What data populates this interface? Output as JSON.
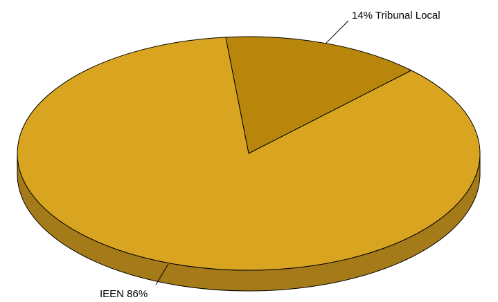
{
  "chart_data": {
    "type": "pie",
    "three_d": true,
    "categories": [
      "Tribunal Local",
      "IEEN"
    ],
    "values": [
      14,
      86
    ],
    "unit": "%",
    "labels": [
      {
        "category": "Tribunal Local",
        "text": "14% Tribunal Local"
      },
      {
        "category": "IEEN",
        "text": "IEEN 86%"
      }
    ],
    "colors": {
      "IEEN": "#D9A521",
      "Tribunal Local": "#B8860B",
      "side": "#A57B1A",
      "outline": "#000000"
    },
    "title": "",
    "legend": "none",
    "grid": false
  }
}
